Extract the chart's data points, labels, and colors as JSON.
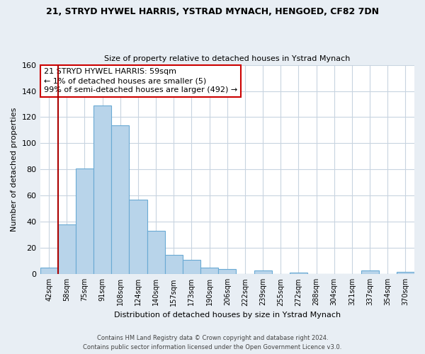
{
  "title": "21, STRYD HYWEL HARRIS, YSTRAD MYNACH, HENGOED, CF82 7DN",
  "subtitle": "Size of property relative to detached houses in Ystrad Mynach",
  "xlabel": "Distribution of detached houses by size in Ystrad Mynach",
  "ylabel": "Number of detached properties",
  "bar_labels": [
    "42sqm",
    "58sqm",
    "75sqm",
    "91sqm",
    "108sqm",
    "124sqm",
    "140sqm",
    "157sqm",
    "173sqm",
    "190sqm",
    "206sqm",
    "222sqm",
    "239sqm",
    "255sqm",
    "272sqm",
    "288sqm",
    "304sqm",
    "321sqm",
    "337sqm",
    "354sqm",
    "370sqm"
  ],
  "bar_values": [
    5,
    38,
    81,
    129,
    114,
    57,
    33,
    15,
    11,
    5,
    4,
    0,
    3,
    0,
    1,
    0,
    0,
    0,
    3,
    0,
    2
  ],
  "bar_color": "#b8d4ea",
  "bar_edge_color": "#6aaad4",
  "annotation_line1": "21 STRYD HYWEL HARRIS: 59sqm",
  "annotation_line2": "← 1% of detached houses are smaller (5)",
  "annotation_line3": "99% of semi-detached houses are larger (492) →",
  "vline_color": "#aa0000",
  "vline_x_index": 1,
  "ylim": [
    0,
    160
  ],
  "yticks": [
    0,
    20,
    40,
    60,
    80,
    100,
    120,
    140,
    160
  ],
  "footer_line1": "Contains HM Land Registry data © Crown copyright and database right 2024.",
  "footer_line2": "Contains public sector information licensed under the Open Government Licence v3.0.",
  "bg_color": "#e8eef4",
  "plot_bg_color": "#ffffff",
  "grid_color": "#c8d4e0",
  "ann_box_edge": "#cc0000"
}
